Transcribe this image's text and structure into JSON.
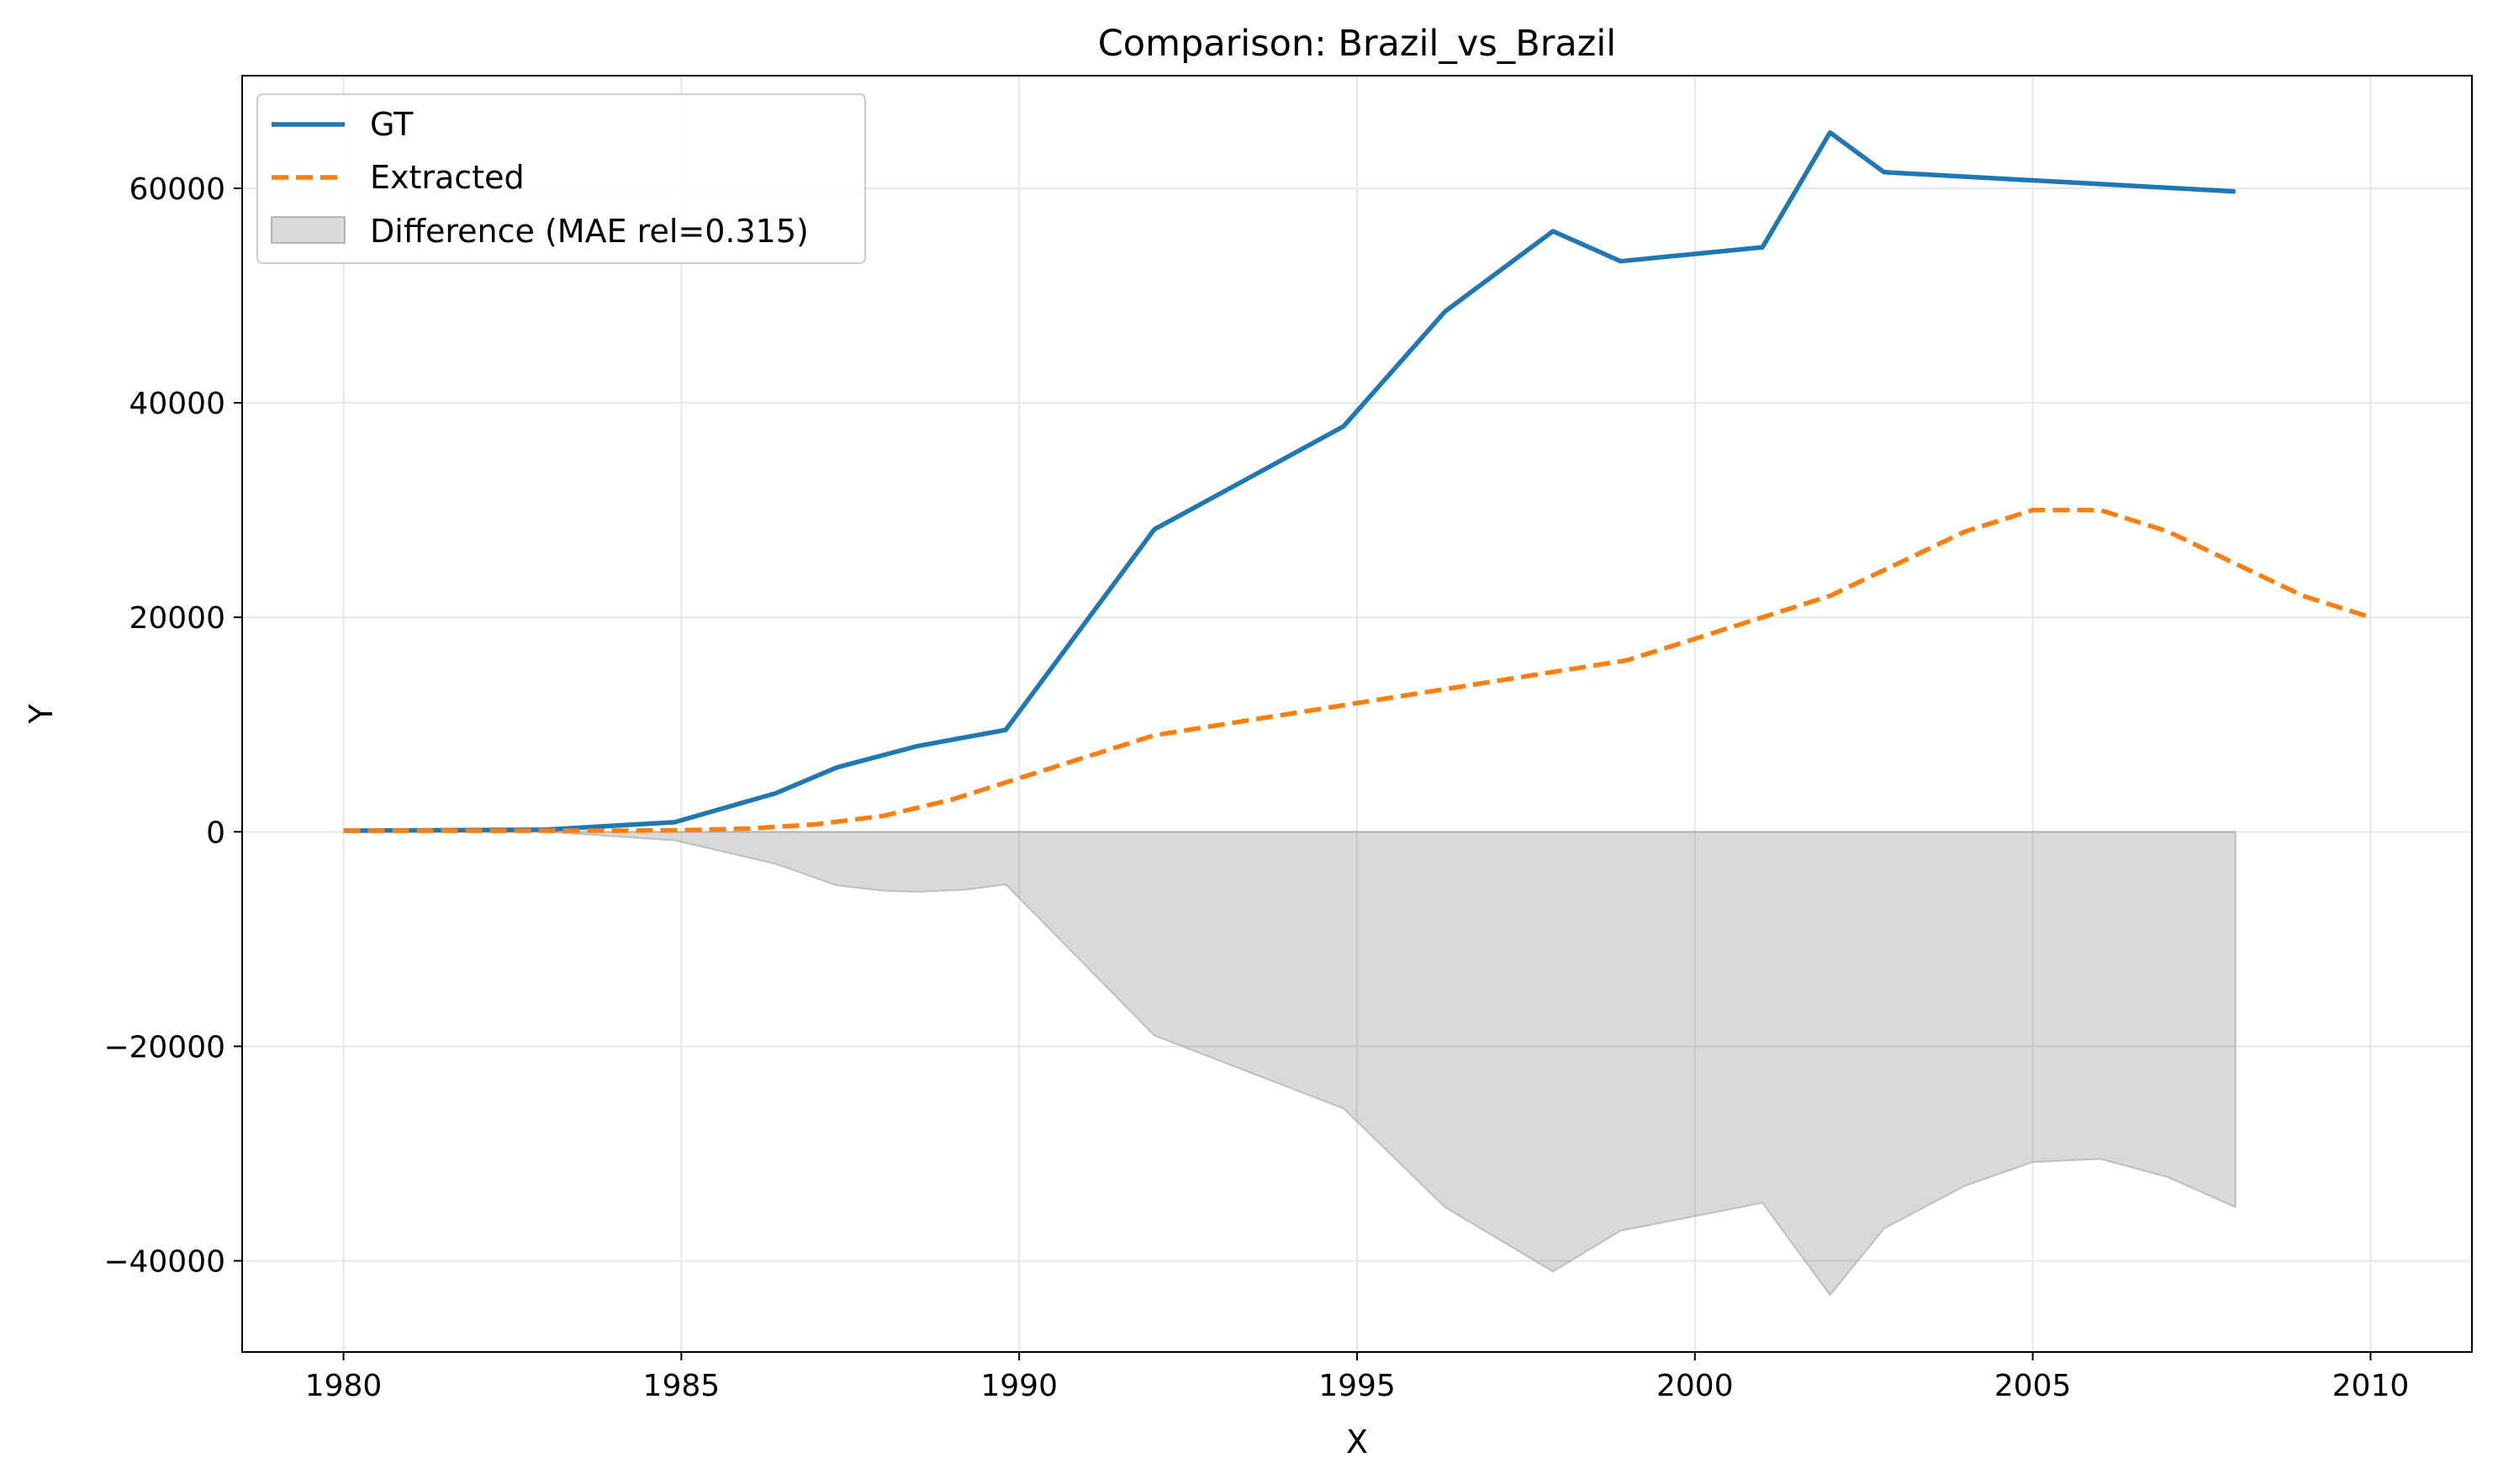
{
  "chart_data": {
    "type": "line",
    "title": "Comparison: Brazil_vs_Brazil",
    "xlabel": "X",
    "ylabel": "Y",
    "xlim": [
      1978.5,
      2011.5
    ],
    "ylim": [
      -48500,
      70500
    ],
    "xticks": [
      1980,
      1985,
      1990,
      1995,
      2000,
      2005,
      2010
    ],
    "yticks": [
      -40000,
      -20000,
      0,
      20000,
      40000,
      60000
    ],
    "ytick_labels": [
      "−40000",
      "−20000",
      "0",
      "20000",
      "40000",
      "60000"
    ],
    "grid": true,
    "legend_position": "top-left",
    "series": [
      {
        "name": "GT",
        "style": "solid",
        "color": "#1f77b4",
        "points": [
          [
            1980,
            100
          ],
          [
            1983,
            200
          ],
          [
            1984.9,
            900
          ],
          [
            1986.4,
            3600
          ],
          [
            1987.3,
            6000
          ],
          [
            1988.5,
            8000
          ],
          [
            1989.8,
            9500
          ],
          [
            1992,
            28200
          ],
          [
            1994.8,
            37800
          ],
          [
            1996.3,
            48500
          ],
          [
            1997.9,
            56000
          ],
          [
            1998.9,
            53200
          ],
          [
            2001,
            54500
          ],
          [
            2002,
            65200
          ],
          [
            2002.8,
            61500
          ],
          [
            2008,
            59700
          ]
        ]
      },
      {
        "name": "Extracted",
        "style": "dashed",
        "color": "#ff7f0e",
        "points": [
          [
            1980,
            100
          ],
          [
            1982,
            100
          ],
          [
            1984,
            100
          ],
          [
            1985,
            150
          ],
          [
            1986,
            300
          ],
          [
            1987,
            700
          ],
          [
            1988,
            1500
          ],
          [
            1989,
            3000
          ],
          [
            1990,
            5000
          ],
          [
            1991,
            7000
          ],
          [
            1992,
            9000
          ],
          [
            1993,
            10000
          ],
          [
            1995,
            12000
          ],
          [
            1997,
            14000
          ],
          [
            1999,
            16000
          ],
          [
            2000,
            18000
          ],
          [
            2001,
            20000
          ],
          [
            2002,
            22000
          ],
          [
            2003,
            25000
          ],
          [
            2004,
            28000
          ],
          [
            2005,
            30000
          ],
          [
            2006,
            30000
          ],
          [
            2007,
            28000
          ],
          [
            2008,
            25000
          ],
          [
            2009,
            22000
          ],
          [
            2010,
            20000
          ]
        ]
      },
      {
        "name": "Difference (MAE rel=0.315)",
        "style": "fill",
        "color": "#808080",
        "points": [
          [
            1980,
            0
          ],
          [
            1983,
            0
          ],
          [
            1984.9,
            -800
          ],
          [
            1986.4,
            -3000
          ],
          [
            1987.3,
            -5000
          ],
          [
            1988,
            -5500
          ],
          [
            1988.5,
            -5600
          ],
          [
            1989.2,
            -5400
          ],
          [
            1989.8,
            -4900
          ],
          [
            1992,
            -19000
          ],
          [
            1994.8,
            -25800
          ],
          [
            1996.3,
            -35000
          ],
          [
            1997.9,
            -41000
          ],
          [
            1998.9,
            -37200
          ],
          [
            2001,
            -34600
          ],
          [
            2002,
            -43200
          ],
          [
            2002.8,
            -37000
          ],
          [
            2004,
            -33000
          ],
          [
            2005,
            -30800
          ],
          [
            2006,
            -30500
          ],
          [
            2007,
            -32200
          ],
          [
            2008,
            -35000
          ]
        ]
      }
    ]
  }
}
